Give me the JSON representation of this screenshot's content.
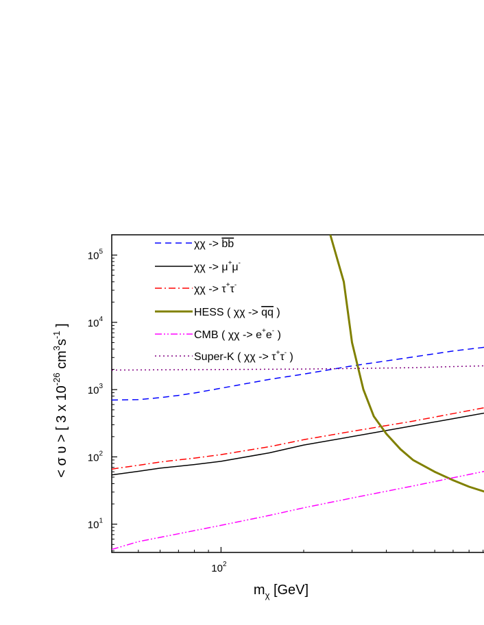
{
  "chart_data": {
    "type": "line",
    "x_scale": "log",
    "y_scale": "log",
    "xlim": [
      40,
      1000
    ],
    "ylim": [
      3.8,
      200000
    ],
    "x_ticks": [
      {
        "value": 100,
        "base": "10",
        "exp": "2"
      }
    ],
    "y_ticks": [
      {
        "value": 10,
        "base": "10",
        "exp": "1"
      },
      {
        "value": 100,
        "base": "10",
        "exp": "2"
      },
      {
        "value": 1000,
        "base": "10",
        "exp": "3"
      },
      {
        "value": 10000,
        "base": "10",
        "exp": "4"
      },
      {
        "value": 100000,
        "base": "10",
        "exp": "5"
      }
    ],
    "xlabel": {
      "main": "m",
      "sub": "χ",
      "rest": " [GeV]"
    },
    "ylabel": {
      "p1": "< σ υ > [ 3 x 10",
      "e1": "-26",
      "p2": " cm",
      "e2": "3",
      "p3": "s",
      "e3": "-1",
      "p4": " ]"
    },
    "legend_position": "top-left",
    "series": [
      {
        "id": "bb",
        "legend": {
          "parts": [
            {
              "t": "χχ -> "
            },
            {
              "t": "bb",
              "over": true
            }
          ]
        },
        "color": "#0000ff",
        "dash": "9,6",
        "width": 1.5,
        "points": [
          [
            40,
            700
          ],
          [
            50,
            710
          ],
          [
            60,
            760
          ],
          [
            70,
            820
          ],
          [
            80,
            890
          ],
          [
            100,
            1050
          ],
          [
            150,
            1420
          ],
          [
            200,
            1700
          ],
          [
            300,
            2250
          ],
          [
            500,
            3050
          ],
          [
            700,
            3750
          ],
          [
            1000,
            4450
          ]
        ]
      },
      {
        "id": "mumu",
        "legend": {
          "parts": [
            {
              "t": "χχ -> μ"
            },
            {
              "t": "+",
              "sup": true
            },
            {
              "t": "μ"
            },
            {
              "t": "-",
              "sup": true
            }
          ]
        },
        "color": "#000000",
        "dash": "",
        "width": 1.5,
        "points": [
          [
            40,
            54
          ],
          [
            50,
            61
          ],
          [
            60,
            68
          ],
          [
            80,
            77
          ],
          [
            100,
            86
          ],
          [
            150,
            115
          ],
          [
            200,
            150
          ],
          [
            300,
            200
          ],
          [
            500,
            290
          ],
          [
            700,
            370
          ],
          [
            1000,
            480
          ]
        ]
      },
      {
        "id": "tautau",
        "legend": {
          "parts": [
            {
              "t": "χχ -> τ"
            },
            {
              "t": "+",
              "sup": true
            },
            {
              "t": "τ"
            },
            {
              "t": "-",
              "sup": true
            }
          ]
        },
        "color": "#ff0000",
        "dash": "10,4,2,4",
        "width": 1.5,
        "points": [
          [
            40,
            66
          ],
          [
            50,
            75
          ],
          [
            60,
            84
          ],
          [
            80,
            96
          ],
          [
            100,
            108
          ],
          [
            150,
            142
          ],
          [
            200,
            180
          ],
          [
            300,
            240
          ],
          [
            500,
            340
          ],
          [
            700,
            440
          ],
          [
            1000,
            580
          ]
        ]
      },
      {
        "id": "hess",
        "legend": {
          "parts": [
            {
              "t": "HESS ( χχ -> "
            },
            {
              "t": "qq",
              "over": true
            },
            {
              "t": " )"
            }
          ]
        },
        "color": "#808000",
        "dash": "",
        "width": 3,
        "points": [
          [
            250,
            200000
          ],
          [
            280,
            40000
          ],
          [
            300,
            5000
          ],
          [
            330,
            1000
          ],
          [
            360,
            400
          ],
          [
            400,
            220
          ],
          [
            450,
            130
          ],
          [
            500,
            90
          ],
          [
            600,
            60
          ],
          [
            700,
            45
          ],
          [
            800,
            36
          ],
          [
            1000,
            27
          ]
        ]
      },
      {
        "id": "cmb",
        "legend": {
          "parts": [
            {
              "t": "CMB ( χχ -> e"
            },
            {
              "t": "+",
              "sup": true
            },
            {
              "t": "e"
            },
            {
              "t": "-",
              "sup": true
            },
            {
              "t": " )"
            }
          ]
        },
        "color": "#ff00ff",
        "dash": "10,3,2,3,2,3",
        "width": 1.5,
        "points": [
          [
            40,
            4.2
          ],
          [
            50,
            5.5
          ],
          [
            70,
            7.2
          ],
          [
            100,
            9.6
          ],
          [
            150,
            13.5
          ],
          [
            200,
            17.5
          ],
          [
            300,
            24.5
          ],
          [
            500,
            37
          ],
          [
            700,
            49
          ],
          [
            1000,
            66
          ]
        ]
      },
      {
        "id": "superk",
        "legend": {
          "parts": [
            {
              "t": "Super-K ( χχ -> τ"
            },
            {
              "t": "+",
              "sup": true
            },
            {
              "t": "τ"
            },
            {
              "t": "-",
              "sup": true
            },
            {
              "t": " )"
            }
          ]
        },
        "color": "#800080",
        "dash": "2,4",
        "width": 1.5,
        "points": [
          [
            40,
            1950
          ],
          [
            100,
            1990
          ],
          [
            200,
            2020
          ],
          [
            300,
            2060
          ],
          [
            500,
            2120
          ],
          [
            700,
            2200
          ],
          [
            1000,
            2280
          ]
        ]
      }
    ]
  }
}
